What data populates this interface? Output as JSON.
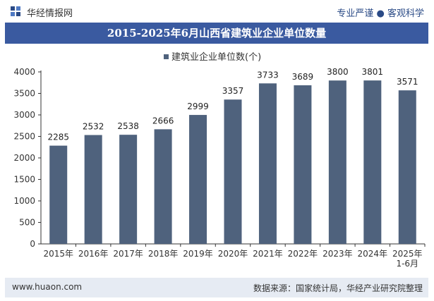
{
  "header": {
    "brand": "华经情报网",
    "slogan": "专业严谨 ● 客观科学"
  },
  "footer": {
    "website": "www.huaon.com",
    "source": "数据来源：国家统计局，华经产业研究院整理"
  },
  "colors": {
    "bar": "#4f627d",
    "title_bg": "#3a5aa0",
    "footer_bg": "#e6ebf3",
    "axis": "#333333"
  },
  "chart_data": {
    "type": "bar",
    "title": "2015-2025年6月山西省建筑业企业单位数量",
    "legend_position": "top",
    "grid": false,
    "categories": [
      "2015年",
      "2016年",
      "2017年",
      "2018年",
      "2019年",
      "2020年",
      "2021年",
      "2022年",
      "2023年",
      "2024年",
      "2025年\n1-6月"
    ],
    "series": [
      {
        "name": "建筑业企业单位数(个)",
        "values": [
          2285,
          2532,
          2538,
          2666,
          2999,
          3357,
          3733,
          3689,
          3800,
          3801,
          3571
        ]
      }
    ],
    "ylim": [
      0,
      4000
    ],
    "yticks": [
      0,
      500,
      1000,
      1500,
      2000,
      2500,
      3000,
      3500,
      4000
    ]
  }
}
